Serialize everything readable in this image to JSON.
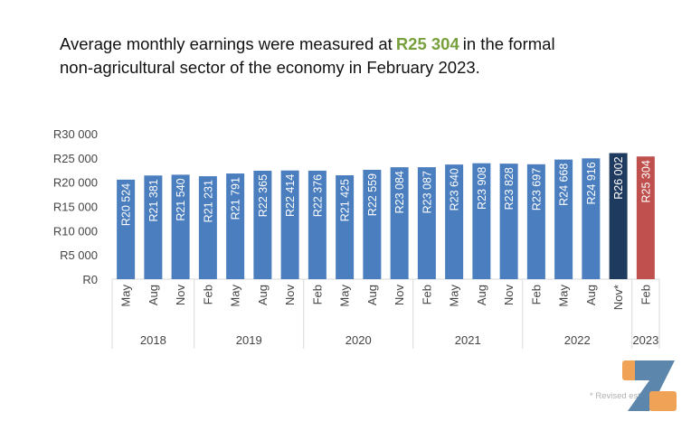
{
  "headline": {
    "before": "Average monthly earnings were measured at",
    "highlight": "R25 304",
    "after_line1": "in the formal",
    "line2": "non-agricultural sector of the economy in February 2023."
  },
  "colors": {
    "bar": "#4a7ebf",
    "revised": "#1f3a5f",
    "latest": "#c0504d",
    "highlight": "#78a03c"
  },
  "chart_data": {
    "type": "bar",
    "ylim": [
      0,
      30000
    ],
    "yticks": [
      0,
      5000,
      10000,
      15000,
      20000,
      25000,
      30000
    ],
    "ytick_labels": [
      "R0",
      "R5 000",
      "R10 000",
      "R15 000",
      "R20 000",
      "R25 000",
      "R30 000"
    ],
    "categories": [
      "May",
      "Aug",
      "Nov",
      "Feb",
      "May",
      "Aug",
      "Nov",
      "Feb",
      "May",
      "Aug",
      "Nov",
      "Feb",
      "May",
      "Aug",
      "Nov",
      "Feb",
      "May",
      "Aug",
      "Nov*",
      "Feb"
    ],
    "values": [
      20524,
      21381,
      21540,
      21231,
      21791,
      22365,
      22414,
      22376,
      21425,
      22559,
      23084,
      23087,
      23640,
      23908,
      23828,
      23697,
      24668,
      24916,
      26002,
      25304
    ],
    "data_labels": [
      "R20 524",
      "R21 381",
      "R21 540",
      "R21 231",
      "R21 791",
      "R22 365",
      "R22 414",
      "R22 376",
      "R21 425",
      "R22 559",
      "R23 084",
      "R23 087",
      "R23 640",
      "R23 908",
      "R23 828",
      "R23 697",
      "R24 668",
      "R24 916",
      "R26 002",
      "R25 304"
    ],
    "bar_color_keys": [
      "bar",
      "bar",
      "bar",
      "bar",
      "bar",
      "bar",
      "bar",
      "bar",
      "bar",
      "bar",
      "bar",
      "bar",
      "bar",
      "bar",
      "bar",
      "bar",
      "bar",
      "bar",
      "revised",
      "latest"
    ],
    "year_groups": [
      {
        "label": "2018",
        "count": 3
      },
      {
        "label": "2019",
        "count": 4
      },
      {
        "label": "2020",
        "count": 4
      },
      {
        "label": "2021",
        "count": 4
      },
      {
        "label": "2022",
        "count": 4
      },
      {
        "label": "2023",
        "count": 1
      }
    ],
    "footnote": "* Revised estimates"
  }
}
